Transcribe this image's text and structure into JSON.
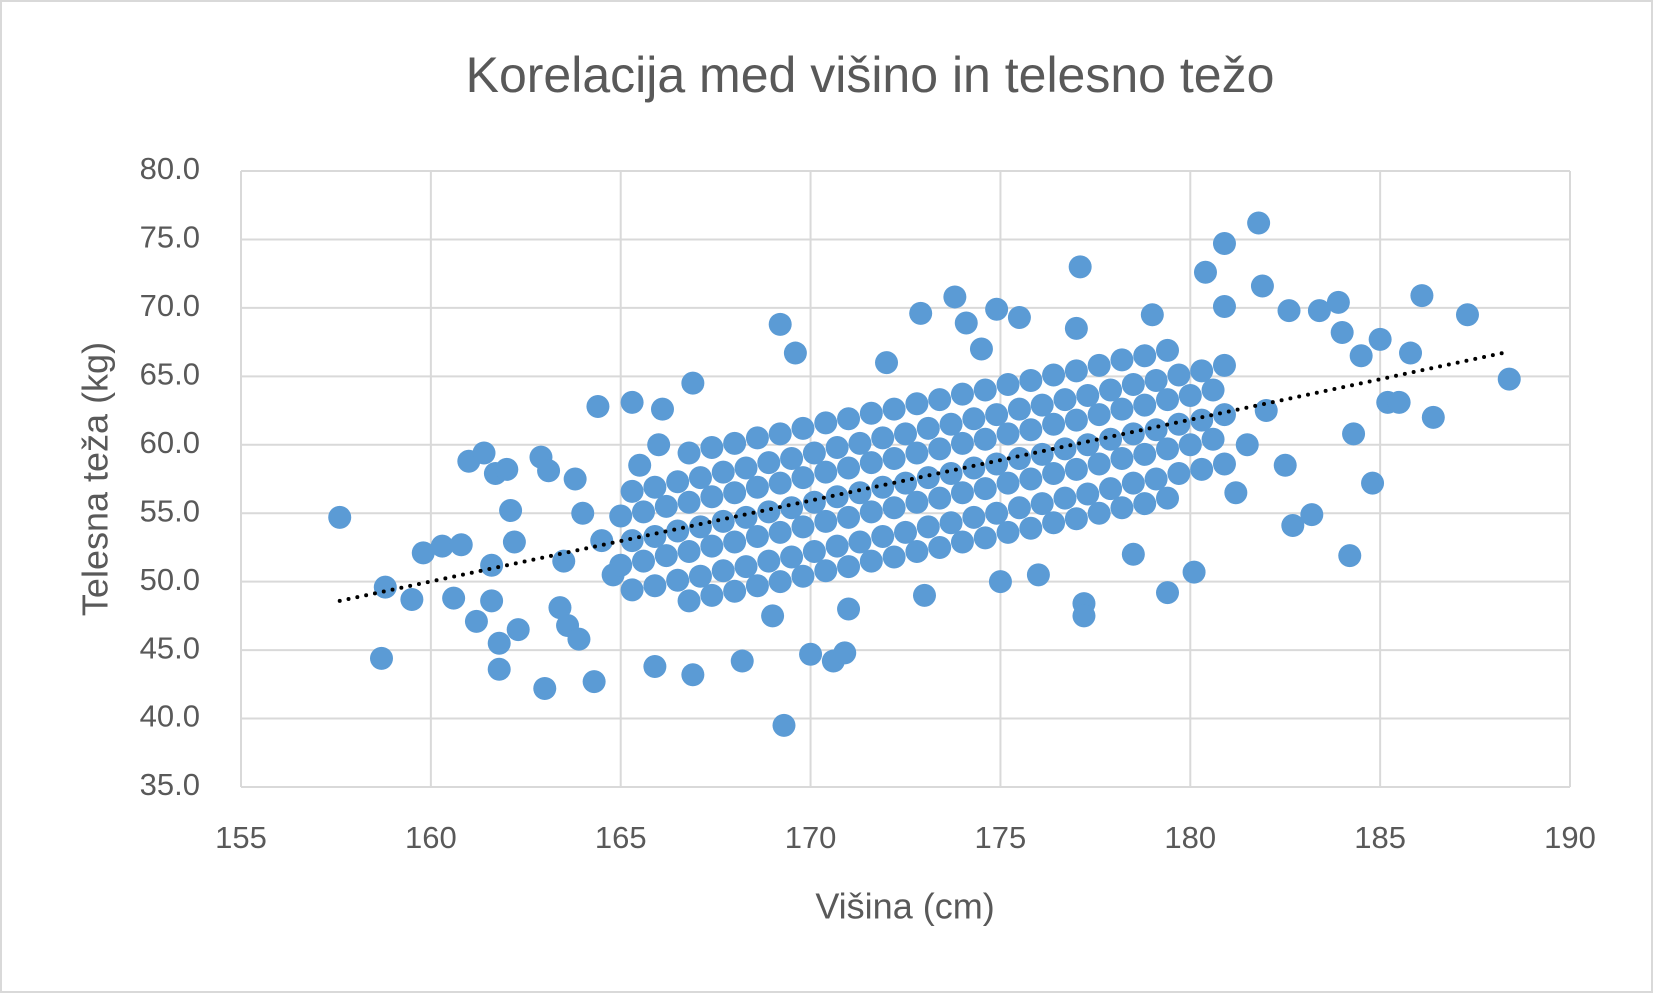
{
  "chart_data": {
    "type": "scatter",
    "title": "Korelacija med višino in telesno težo",
    "x_label": "Višina (cm)",
    "y_label": "Telesna teža (kg)",
    "color": "#5b9bd5",
    "grid": true,
    "xlim": [
      155,
      190
    ],
    "xticks": [
      155,
      160,
      165,
      170,
      175,
      180,
      185,
      190
    ],
    "ylim": [
      35,
      80
    ],
    "yticks": [
      {
        "value": 35,
        "label": "35.0"
      },
      {
        "value": 40,
        "label": "40.0"
      },
      {
        "value": 45,
        "label": "45.0"
      },
      {
        "value": 50,
        "label": "50.0"
      },
      {
        "value": 55,
        "label": "55.0"
      },
      {
        "value": 60,
        "label": "60.0"
      },
      {
        "value": 65,
        "label": "65.0"
      },
      {
        "value": 70,
        "label": "70.0"
      },
      {
        "value": 75,
        "label": "75.0"
      },
      {
        "value": 80,
        "label": "80.0"
      }
    ],
    "trendline": {
      "x": [
        157.6,
        188.4
      ],
      "values": [
        48.6,
        66.8
      ],
      "color": "#000000"
    },
    "x": [
      157.6,
      158.7,
      158.8,
      159.5,
      159.8,
      160.3,
      160.6,
      160.8,
      161.0,
      161.2,
      161.4,
      161.6,
      161.6,
      161.7,
      161.8,
      161.8,
      162.0,
      162.1,
      162.2,
      162.3,
      162.9,
      163.0,
      163.1,
      163.4,
      163.6,
      163.8,
      163.9,
      164.3,
      164.4,
      165.3,
      165.9,
      166.1,
      166.9,
      166.9,
      168.2,
      169.2,
      169.3,
      169.6,
      170.0,
      170.6,
      170.9,
      172.9,
      173.8,
      174.1,
      174.9,
      175.5,
      177.1,
      177.2,
      177.2,
      179.4,
      180.1,
      180.4,
      180.9,
      180.9,
      181.8,
      181.9,
      182.6,
      182.7,
      183.2,
      183.4,
      183.9,
      184.0,
      184.2,
      184.3,
      184.5,
      184.8,
      185.0,
      185.2,
      185.5,
      185.8,
      186.1,
      186.4,
      187.3,
      188.4,
      164.0,
      164.5,
      163.5,
      164.8,
      165.5,
      166.0,
      181.5,
      182.0,
      181.2,
      182.5,
      169.0,
      171.0,
      173.0,
      175.0,
      172.0,
      174.5,
      177.0,
      179.0,
      176.0,
      178.5,
      165.3,
      165.0,
      165.3,
      165.0,
      165.3,
      165.9,
      165.6,
      165.9,
      165.6,
      165.9,
      166.5,
      166.2,
      166.5,
      166.2,
      166.5,
      166.8,
      167.1,
      166.8,
      167.1,
      166.8,
      167.1,
      166.8,
      167.4,
      167.7,
      167.4,
      167.7,
      167.4,
      167.7,
      167.4,
      168.0,
      168.3,
      168.0,
      168.3,
      168.0,
      168.3,
      168.0,
      168.6,
      168.9,
      168.6,
      168.9,
      168.6,
      168.9,
      168.6,
      169.2,
      169.5,
      169.2,
      169.5,
      169.2,
      169.5,
      169.2,
      169.8,
      170.1,
      169.8,
      170.1,
      169.8,
      170.1,
      169.8,
      170.4,
      170.7,
      170.4,
      170.7,
      170.4,
      170.7,
      170.4,
      171.0,
      171.3,
      171.0,
      171.3,
      171.0,
      171.3,
      171.0,
      171.6,
      171.9,
      171.6,
      171.9,
      171.6,
      171.9,
      171.6,
      172.2,
      172.5,
      172.2,
      172.5,
      172.2,
      172.5,
      172.2,
      172.8,
      173.1,
      172.8,
      173.1,
      172.8,
      173.1,
      172.8,
      173.4,
      173.7,
      173.4,
      173.7,
      173.4,
      173.7,
      173.4,
      174.0,
      174.3,
      174.0,
      174.3,
      174.0,
      174.3,
      174.0,
      174.6,
      174.9,
      174.6,
      174.9,
      174.6,
      174.9,
      174.6,
      175.2,
      175.5,
      175.2,
      175.5,
      175.2,
      175.5,
      175.2,
      175.8,
      176.1,
      175.8,
      176.1,
      175.8,
      176.1,
      175.8,
      176.4,
      176.7,
      176.4,
      176.7,
      176.4,
      176.7,
      176.4,
      177.0,
      177.3,
      177.0,
      177.3,
      177.0,
      177.3,
      177.0,
      177.6,
      177.9,
      177.6,
      177.9,
      177.6,
      177.9,
      177.6,
      178.2,
      178.5,
      178.2,
      178.5,
      178.2,
      178.5,
      178.2,
      178.8,
      179.1,
      178.8,
      179.1,
      178.8,
      179.1,
      178.8,
      179.4,
      179.7,
      179.4,
      179.7,
      179.4,
      179.7,
      179.4,
      180.3,
      180.0,
      180.3,
      180.0,
      180.3,
      180.9,
      180.6,
      180.9,
      180.6,
      180.9
    ],
    "values": [
      54.7,
      44.4,
      49.6,
      48.7,
      52.1,
      52.6,
      48.8,
      52.7,
      58.8,
      47.1,
      59.4,
      51.2,
      48.6,
      57.9,
      45.5,
      43.6,
      58.2,
      55.2,
      52.9,
      46.5,
      59.1,
      42.2,
      58.1,
      48.1,
      46.8,
      57.5,
      45.8,
      42.7,
      62.8,
      63.1,
      43.8,
      62.6,
      64.5,
      43.2,
      44.2,
      68.8,
      39.5,
      66.7,
      44.7,
      44.2,
      44.8,
      69.6,
      70.8,
      68.9,
      69.9,
      69.3,
      73.0,
      48.4,
      47.5,
      49.2,
      50.7,
      72.6,
      74.7,
      70.1,
      76.2,
      71.6,
      69.8,
      54.1,
      54.9,
      69.8,
      70.4,
      68.2,
      51.9,
      60.8,
      66.5,
      57.2,
      67.7,
      63.1,
      63.1,
      66.7,
      70.9,
      62.0,
      69.5,
      64.8,
      55.0,
      53.0,
      51.5,
      50.5,
      58.5,
      60.0,
      60.0,
      62.5,
      56.5,
      58.5,
      47.5,
      48.0,
      49.0,
      50.0,
      66.0,
      67.0,
      68.5,
      69.5,
      50.5,
      52.0,
      49.4,
      51.2,
      53.0,
      54.8,
      56.6,
      49.7,
      51.5,
      53.3,
      55.1,
      56.9,
      50.1,
      51.9,
      53.7,
      55.5,
      57.3,
      48.6,
      50.4,
      52.2,
      54.0,
      55.8,
      57.6,
      59.4,
      49.0,
      50.8,
      52.6,
      54.4,
      56.2,
      58.0,
      59.8,
      49.3,
      51.1,
      52.9,
      54.7,
      56.5,
      58.3,
      60.1,
      49.7,
      51.5,
      53.3,
      55.1,
      56.9,
      58.7,
      60.5,
      50.0,
      51.8,
      53.6,
      55.4,
      57.2,
      59.0,
      60.8,
      50.4,
      52.2,
      54.0,
      55.8,
      57.6,
      59.4,
      61.2,
      50.8,
      52.6,
      54.4,
      56.2,
      58.0,
      59.8,
      61.6,
      51.1,
      52.9,
      54.7,
      56.5,
      58.3,
      60.1,
      61.9,
      51.5,
      53.3,
      55.1,
      56.9,
      58.7,
      60.5,
      62.3,
      51.8,
      53.6,
      55.4,
      57.2,
      59.0,
      60.8,
      62.6,
      52.2,
      54.0,
      55.8,
      57.6,
      59.4,
      61.2,
      63.0,
      52.5,
      54.3,
      56.1,
      57.9,
      59.7,
      61.5,
      63.3,
      52.9,
      54.7,
      56.5,
      58.3,
      60.1,
      61.9,
      63.7,
      53.2,
      55.0,
      56.8,
      58.6,
      60.4,
      62.2,
      64.0,
      53.6,
      55.4,
      57.2,
      59.0,
      60.8,
      62.6,
      64.4,
      53.9,
      55.7,
      57.5,
      59.3,
      61.1,
      62.9,
      64.7,
      54.3,
      56.1,
      57.9,
      59.7,
      61.5,
      63.3,
      65.1,
      54.6,
      56.4,
      58.2,
      60.0,
      61.8,
      63.6,
      65.4,
      55.0,
      56.8,
      58.6,
      60.4,
      62.2,
      64.0,
      65.8,
      55.4,
      57.2,
      59.0,
      60.8,
      62.6,
      64.4,
      66.2,
      55.7,
      57.5,
      59.3,
      61.1,
      62.9,
      64.7,
      66.5,
      56.1,
      57.9,
      59.7,
      61.5,
      63.3,
      65.1,
      66.9,
      58.2,
      60.0,
      61.8,
      63.6,
      65.4,
      58.6,
      60.4,
      62.2,
      64.0,
      65.8
    ]
  }
}
